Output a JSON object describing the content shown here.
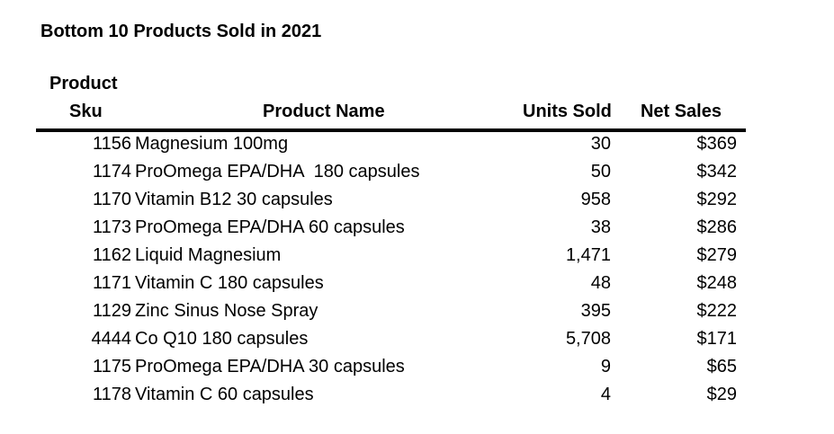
{
  "title": "Bottom 10 Products Sold in 2021",
  "headers": {
    "sku_line1": "Product",
    "sku_line2": "Sku",
    "name": "Product Name",
    "units": "Units Sold",
    "sales": "Net Sales"
  },
  "rows": [
    {
      "sku": "1156",
      "name": "Magnesium 100mg",
      "units": "30",
      "sales": "$369"
    },
    {
      "sku": "1174",
      "name": "ProOmega EPA/DHA  180 capsules",
      "units": "50",
      "sales": "$342"
    },
    {
      "sku": "1170",
      "name": "Vitamin B12 30 capsules",
      "units": "958",
      "sales": "$292"
    },
    {
      "sku": "1173",
      "name": "ProOmega EPA/DHA 60 capsules",
      "units": "38",
      "sales": "$286"
    },
    {
      "sku": "1162",
      "name": "Liquid Magnesium",
      "units": "1,471",
      "sales": "$279"
    },
    {
      "sku": "1171",
      "name": "Vitamin C 180 capsules",
      "units": "48",
      "sales": "$248"
    },
    {
      "sku": "1129",
      "name": "Zinc Sinus Nose Spray",
      "units": "395",
      "sales": "$222"
    },
    {
      "sku": "4444",
      "name": "Co Q10 180 capsules",
      "units": "5,708",
      "sales": "$171"
    },
    {
      "sku": "1175",
      "name": "ProOmega EPA/DHA 30 capsules",
      "units": "9",
      "sales": "$65"
    },
    {
      "sku": "1178",
      "name": "Vitamin C 60 capsules",
      "units": "4",
      "sales": "$29"
    }
  ]
}
